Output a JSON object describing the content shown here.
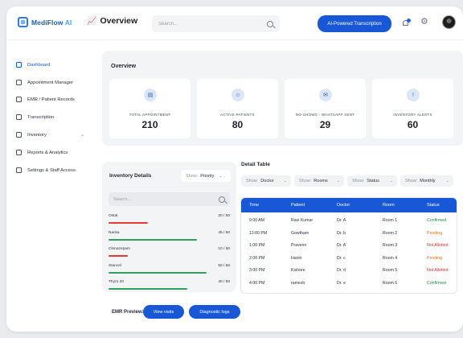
{
  "brand": {
    "name_part1": "MediFlow",
    "name_part2": "AI"
  },
  "header": {
    "title": "Overview",
    "search_placeholder": "Search...",
    "ai_button": "AI-Powered Transcription"
  },
  "sidebar": {
    "items": [
      {
        "label": "Dashboard",
        "active": true
      },
      {
        "label": "Appointment Manager"
      },
      {
        "label": "EMR / Patient Records"
      },
      {
        "label": "Transcription"
      },
      {
        "label": "Inventory",
        "has_caret": true
      },
      {
        "label": "Reports & Analytics"
      },
      {
        "label": "Settings & Staff Access"
      }
    ]
  },
  "overview": {
    "title": "Overview",
    "cards": [
      {
        "label": "TOTAL APPOINTMENT",
        "value": "210",
        "icon": "calendar-icon"
      },
      {
        "label": "ACTIVE PATIENTS",
        "value": "80",
        "icon": "user-icon"
      },
      {
        "label": "NO-SHOWS - WHATSAPP SENT",
        "value": "29",
        "icon": "chat-icon"
      },
      {
        "label": "INVENTORY ALERTS",
        "value": "60",
        "icon": "alert-icon"
      }
    ]
  },
  "inventory": {
    "title": "Inventory Details",
    "sort_label": "Show:",
    "sort_value": "Priority",
    "search_placeholder": "Search...",
    "items": [
      {
        "name": "Ostal",
        "qty": "20 / 50",
        "level": 0.4,
        "color": "#e53935"
      },
      {
        "name": "Nacka",
        "qty": "45 / 50",
        "level": 0.9,
        "color": "#2e9e5b"
      },
      {
        "name": "Clonazepam",
        "qty": "10 / 50",
        "level": 0.2,
        "color": "#e53935"
      },
      {
        "name": "Stancel",
        "qty": "50 / 50",
        "level": 1.0,
        "color": "#2e9e5b"
      },
      {
        "name": "Thyro 20",
        "qty": "40 / 50",
        "level": 0.8,
        "color": "#2e9e5b"
      }
    ]
  },
  "detail": {
    "title": "Detail Table",
    "filters": [
      {
        "label": "Show:",
        "value": "Doctor"
      },
      {
        "label": "Show:",
        "value": "Rooms"
      },
      {
        "label": "Show:",
        "value": "Status"
      },
      {
        "label": "Show:",
        "value": "Monthly"
      }
    ],
    "columns": [
      "Time",
      "Patient",
      "Doctor",
      "Room",
      "Status"
    ],
    "rows": [
      {
        "time": "9:00 AM",
        "patient": "Ravi Kumar",
        "doctor": "Dr. A",
        "room": "Room 1",
        "status": "Confirmed",
        "status_type": "confirmed"
      },
      {
        "time": "12:00 PM",
        "patient": "Gowtham",
        "doctor": "Dr. b",
        "room": "Room 2",
        "status": "Pending",
        "status_type": "pending"
      },
      {
        "time": "1:00 PM",
        "patient": "Pravenn",
        "doctor": "Dr. A",
        "room": "Room 3",
        "status": "Not Allotted",
        "status_type": "notallotted"
      },
      {
        "time": "2:00 PM",
        "patient": "Harini",
        "doctor": "Dr. c",
        "room": "Room 4",
        "status": "Pending",
        "status_type": "pending"
      },
      {
        "time": "3:00 PM",
        "patient": "Kishore",
        "doctor": "Dr. d",
        "room": "Room 5",
        "status": "Not Allotted",
        "status_type": "notallotted"
      },
      {
        "time": "4:00 PM",
        "patient": "ramesh",
        "doctor": "Dr. e",
        "room": "Room 6",
        "status": "Confirmed",
        "status_type": "confirmed"
      }
    ]
  },
  "emr": {
    "label": "EMR Preview:",
    "buttons": [
      "View visits",
      "Diagnostic logs"
    ]
  }
}
